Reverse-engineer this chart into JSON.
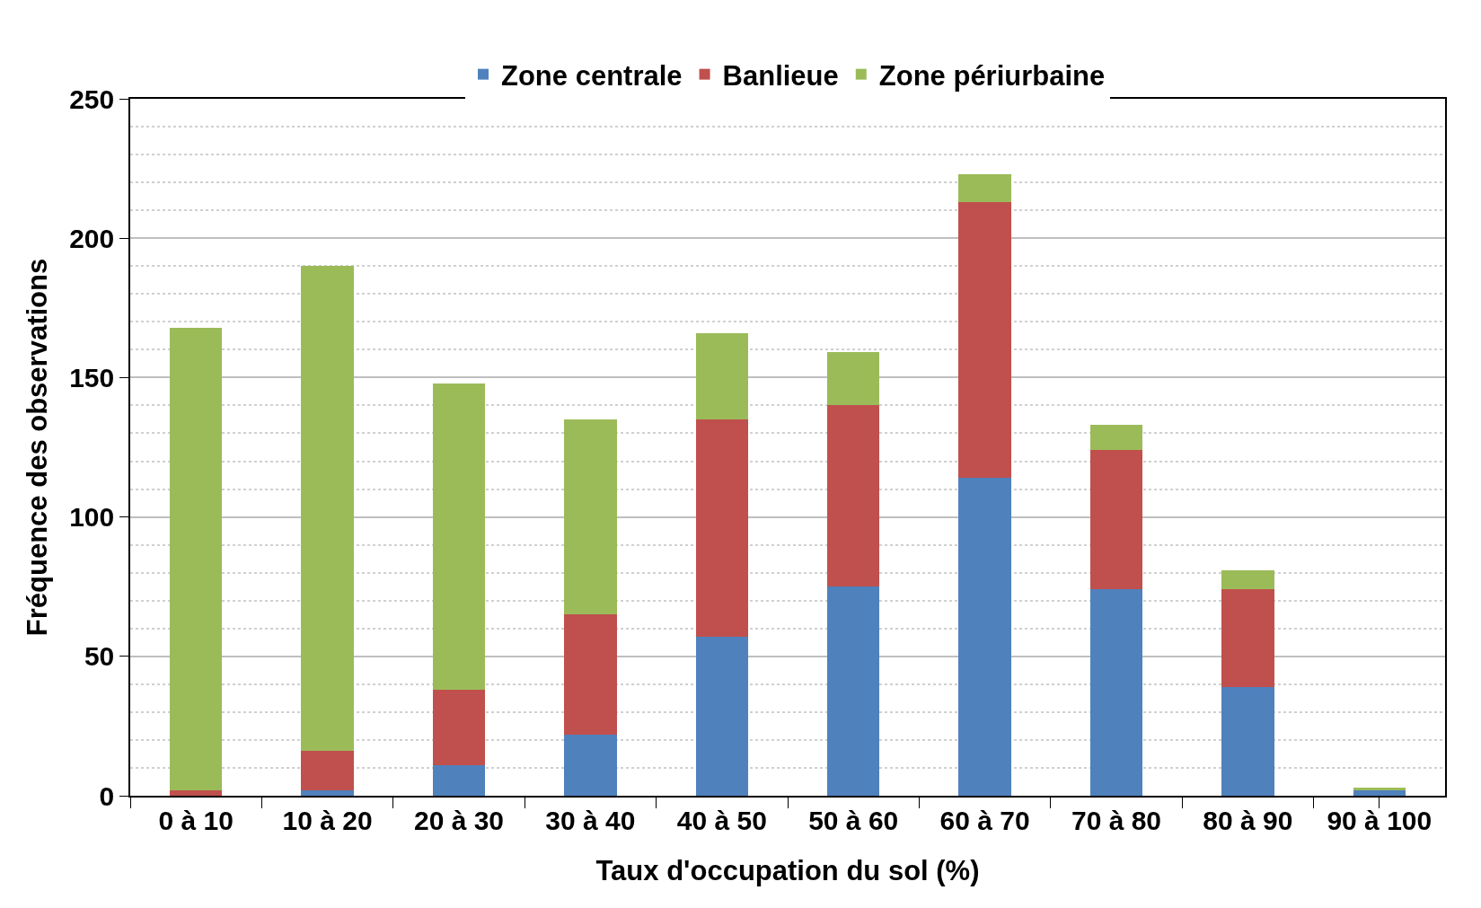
{
  "chart_data": {
    "type": "bar",
    "stacked": true,
    "xlabel": "Taux d'occupation du sol (%)",
    "ylabel": "Fréquence des observations",
    "categories": [
      "0 à 10",
      "10 à 20",
      "20 à 30",
      "30 à 40",
      "40 à 50",
      "50 à 60",
      "60 à 70",
      "70 à 80",
      "80 à 90",
      "90 à 100"
    ],
    "series": [
      {
        "name": "Zone centrale",
        "color": "#4f81bd",
        "values": [
          0,
          2,
          11,
          22,
          57,
          75,
          114,
          74,
          39,
          2
        ]
      },
      {
        "name": "Banlieue",
        "color": "#c0504d",
        "values": [
          2,
          14,
          27,
          43,
          78,
          65,
          99,
          50,
          35,
          0
        ]
      },
      {
        "name": "Zone périurbaine",
        "color": "#9bbb59",
        "values": [
          166,
          174,
          110,
          70,
          31,
          19,
          10,
          9,
          7,
          1
        ]
      }
    ],
    "ylim": [
      0,
      250
    ],
    "yticks": [
      0,
      50,
      100,
      150,
      200,
      250
    ],
    "grid": "y",
    "legend": "top"
  }
}
